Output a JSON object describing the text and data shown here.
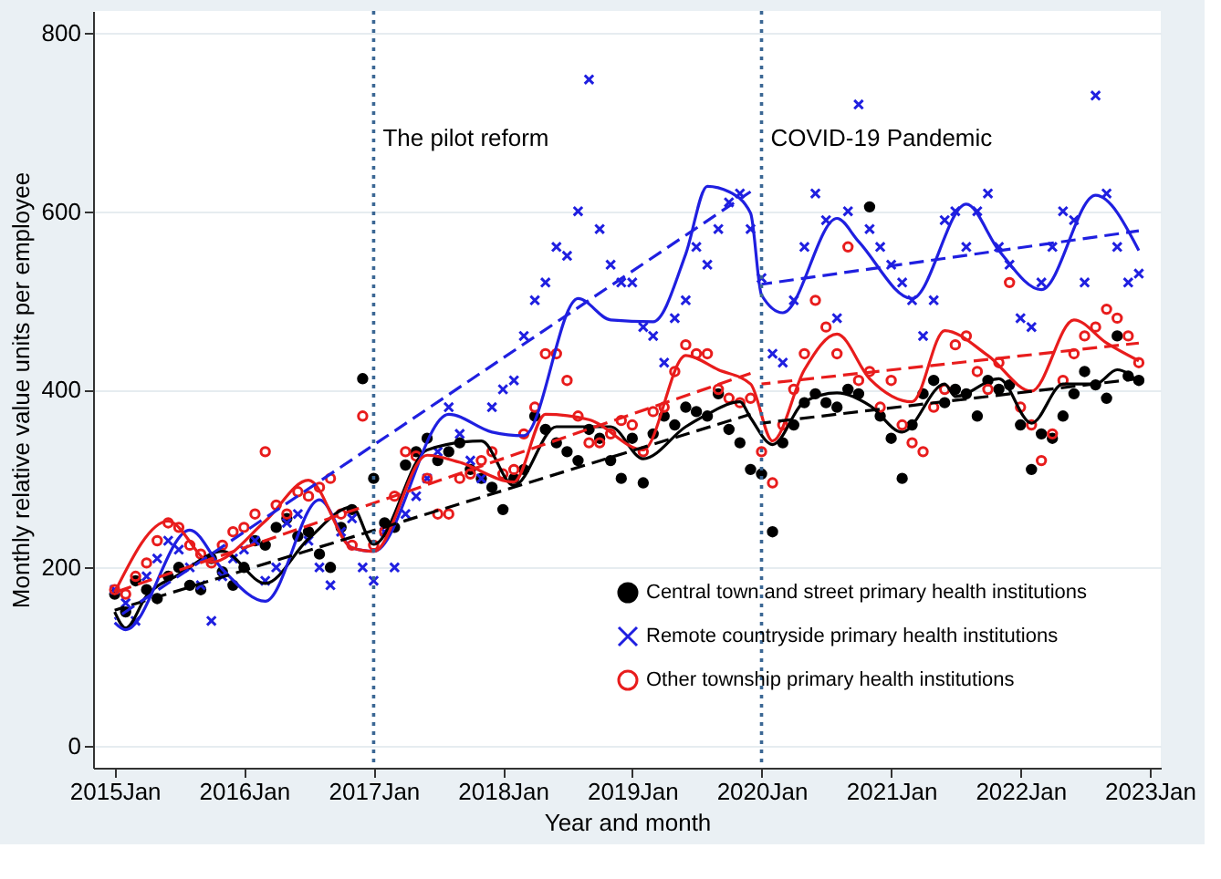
{
  "chart_data": {
    "type": "scatter",
    "xlabel": "Year and month",
    "ylabel": "Monthly relative value units per employee",
    "x": [
      "2015-01",
      "2015-02",
      "2015-03",
      "2015-04",
      "2015-05",
      "2015-06",
      "2015-07",
      "2015-08",
      "2015-09",
      "2015-10",
      "2015-11",
      "2015-12",
      "2016-01",
      "2016-02",
      "2016-03",
      "2016-04",
      "2016-05",
      "2016-06",
      "2016-07",
      "2016-08",
      "2016-09",
      "2016-10",
      "2016-11",
      "2016-12",
      "2017-01",
      "2017-02",
      "2017-03",
      "2017-04",
      "2017-05",
      "2017-06",
      "2017-07",
      "2017-08",
      "2017-09",
      "2017-10",
      "2017-11",
      "2017-12",
      "2018-01",
      "2018-02",
      "2018-03",
      "2018-04",
      "2018-05",
      "2018-06",
      "2018-07",
      "2018-08",
      "2018-09",
      "2018-10",
      "2018-11",
      "2018-12",
      "2019-01",
      "2019-02",
      "2019-03",
      "2019-04",
      "2019-05",
      "2019-06",
      "2019-07",
      "2019-08",
      "2019-09",
      "2019-10",
      "2019-11",
      "2019-12",
      "2020-01",
      "2020-02",
      "2020-03",
      "2020-04",
      "2020-05",
      "2020-06",
      "2020-07",
      "2020-08",
      "2020-09",
      "2020-10",
      "2020-11",
      "2020-12",
      "2021-01",
      "2021-02",
      "2021-03",
      "2021-04",
      "2021-05",
      "2021-06",
      "2021-07",
      "2021-08",
      "2021-09",
      "2021-10",
      "2021-11",
      "2021-12",
      "2022-01",
      "2022-02",
      "2022-03",
      "2022-04",
      "2022-05",
      "2022-06",
      "2022-07",
      "2022-08",
      "2022-09",
      "2022-10",
      "2022-11",
      "2022-12"
    ],
    "series": [
      {
        "name": "Central town and street primary health institutions",
        "color": "#000000",
        "marker": "circle",
        "values": [
          170,
          150,
          185,
          175,
          165,
          190,
          200,
          180,
          175,
          210,
          195,
          180,
          200,
          230,
          225,
          245,
          255,
          235,
          240,
          215,
          200,
          245,
          265,
          412,
          300,
          250,
          245,
          315,
          330,
          345,
          320,
          330,
          340,
          310,
          300,
          290,
          265,
          300,
          310,
          370,
          355,
          340,
          330,
          320,
          355,
          345,
          320,
          300,
          345,
          295,
          350,
          370,
          360,
          380,
          375,
          370,
          395,
          355,
          340,
          310,
          305,
          240,
          340,
          360,
          385,
          395,
          385,
          380,
          400,
          395,
          605,
          370,
          345,
          300,
          360,
          395,
          410,
          385,
          400,
          395,
          370,
          410,
          400,
          405,
          360,
          310,
          350,
          345,
          370,
          395,
          420,
          405,
          390,
          460,
          415,
          410
        ]
      },
      {
        "name": "Remote countryside primary health institutions",
        "color": "#1f1fe0",
        "marker": "cross",
        "values": [
          175,
          160,
          140,
          190,
          210,
          230,
          220,
          200,
          180,
          140,
          190,
          210,
          220,
          230,
          185,
          200,
          250,
          260,
          230,
          200,
          180,
          240,
          255,
          200,
          185,
          240,
          200,
          260,
          280,
          300,
          330,
          380,
          350,
          320,
          300,
          380,
          400,
          410,
          460,
          500,
          520,
          560,
          550,
          600,
          748,
          580,
          540,
          520,
          520,
          470,
          460,
          430,
          480,
          500,
          560,
          540,
          580,
          610,
          620,
          580,
          525,
          440,
          430,
          500,
          560,
          620,
          590,
          480,
          600,
          720,
          580,
          560,
          540,
          520,
          500,
          460,
          500,
          590,
          600,
          560,
          600,
          620,
          560,
          540,
          480,
          470,
          520,
          560,
          600,
          590,
          520,
          730,
          620,
          560,
          520,
          530
        ]
      },
      {
        "name": "Other township primary health institutions",
        "color": "#e81c1c",
        "marker": "circle",
        "values": [
          175,
          170,
          190,
          205,
          230,
          250,
          245,
          225,
          215,
          205,
          225,
          240,
          245,
          260,
          330,
          270,
          260,
          285,
          280,
          290,
          300,
          260,
          225,
          370,
          225,
          240,
          280,
          330,
          325,
          300,
          260,
          260,
          300,
          305,
          320,
          330,
          305,
          310,
          350,
          380,
          440,
          440,
          410,
          370,
          340,
          340,
          350,
          365,
          360,
          330,
          375,
          380,
          420,
          450,
          440,
          440,
          400,
          390,
          385,
          390,
          330,
          295,
          360,
          400,
          440,
          500,
          470,
          440,
          560,
          410,
          420,
          380,
          410,
          360,
          340,
          330,
          380,
          400,
          450,
          460,
          420,
          400,
          430,
          520,
          380,
          360,
          320,
          350,
          410,
          440,
          460,
          470,
          490,
          480,
          460,
          430
        ]
      },
      {
        "type": "line",
        "color": "#000000",
        "line_style": "solid",
        "x": [
          "2015-01",
          "2015-02",
          "2015-04",
          "2015-07",
          "2015-11",
          "2016-03",
          "2016-07",
          "2016-11",
          "2017-01",
          "2017-06",
          "2017-11",
          "2018-02",
          "2018-06",
          "2018-11",
          "2019-02",
          "2019-06",
          "2019-08",
          "2019-11",
          "2019-12",
          "2020-02",
          "2020-05",
          "2020-08",
          "2020-11",
          "2021-02",
          "2021-06",
          "2021-07",
          "2021-11",
          "2022-02",
          "2022-05",
          "2022-08",
          "2022-10",
          "2022-12"
        ],
        "values": [
          150,
          132,
          168,
          192,
          218,
          182,
          232,
          268,
          226,
          332,
          342,
          292,
          358,
          358,
          322,
          358,
          372,
          386,
          368,
          338,
          386,
          396,
          382,
          352,
          406,
          392,
          412,
          362,
          406,
          406,
          422,
          408
        ]
      },
      {
        "type": "line",
        "color": "#1f1fe0",
        "line_style": "solid",
        "x": [
          "2015-01",
          "2015-02",
          "2015-08",
          "2015-11",
          "2016-03",
          "2016-08",
          "2016-11",
          "2017-01",
          "2017-08",
          "2017-12",
          "2018-03",
          "2018-08",
          "2018-11",
          "2019-03",
          "2019-06",
          "2019-08",
          "2019-10",
          "2019-12",
          "2020-01",
          "2020-03",
          "2020-08",
          "2020-10",
          "2021-03",
          "2021-08",
          "2021-11",
          "2022-03",
          "2022-08",
          "2022-12"
        ],
        "values": [
          138,
          130,
          242,
          198,
          162,
          276,
          222,
          218,
          372,
          352,
          348,
          502,
          478,
          476,
          552,
          628,
          622,
          598,
          506,
          486,
          592,
          566,
          502,
          608,
          556,
          512,
          618,
          556
        ]
      },
      {
        "type": "line",
        "color": "#e81c1c",
        "line_style": "solid",
        "x": [
          "2015-01",
          "2015-06",
          "2015-10",
          "2016-03",
          "2016-07",
          "2016-11",
          "2017-01",
          "2017-06",
          "2017-09",
          "2018-02",
          "2018-05",
          "2018-09",
          "2019-02",
          "2019-06",
          "2019-09",
          "2019-12",
          "2020-02",
          "2020-05",
          "2020-08",
          "2020-11",
          "2021-03",
          "2021-06",
          "2021-10",
          "2022-02",
          "2022-06",
          "2022-09",
          "2022-12"
        ],
        "values": [
          172,
          252,
          206,
          252,
          298,
          222,
          218,
          326,
          318,
          296,
          372,
          366,
          332,
          438,
          422,
          406,
          342,
          422,
          462,
          412,
          386,
          466,
          438,
          398,
          478,
          452,
          432
        ]
      },
      {
        "type": "line",
        "color": "#000000",
        "line_style": "dashed",
        "x": [
          "2015-01",
          "2019-12"
        ],
        "values": [
          152,
          372
        ]
      },
      {
        "type": "line",
        "color": "#000000",
        "line_style": "dashed",
        "x": [
          "2020-01",
          "2022-12"
        ],
        "values": [
          362,
          412
        ]
      },
      {
        "type": "line",
        "color": "#1f1fe0",
        "line_style": "dashed",
        "x": [
          "2015-01",
          "2019-12"
        ],
        "values": [
          142,
          622
        ]
      },
      {
        "type": "line",
        "color": "#1f1fe0",
        "line_style": "dashed",
        "x": [
          "2020-01",
          "2022-12"
        ],
        "values": [
          518,
          578
        ]
      },
      {
        "type": "line",
        "color": "#e81c1c",
        "line_style": "dashed",
        "x": [
          "2015-01",
          "2019-12"
        ],
        "values": [
          172,
          418
        ]
      },
      {
        "type": "line",
        "color": "#e81c1c",
        "line_style": "dashed",
        "x": [
          "2020-01",
          "2022-12"
        ],
        "values": [
          406,
          452
        ]
      }
    ],
    "xlim": [
      "2014-11",
      "2023-02"
    ],
    "xticks": [
      {
        "value": "2015-01",
        "label": "2015Jan"
      },
      {
        "value": "2016-01",
        "label": "2016Jan"
      },
      {
        "value": "2017-01",
        "label": "2017Jan"
      },
      {
        "value": "2018-01",
        "label": "2018Jan"
      },
      {
        "value": "2019-01",
        "label": "2019Jan"
      },
      {
        "value": "2020-01",
        "label": "2020Jan"
      },
      {
        "value": "2021-01",
        "label": "2021Jan"
      },
      {
        "value": "2022-01",
        "label": "2022Jan"
      },
      {
        "value": "2023-01",
        "label": "2023Jan"
      }
    ],
    "ylim": [
      -25,
      825
    ],
    "yticks": [
      0,
      200,
      400,
      600,
      800
    ],
    "grid": "y",
    "legend": "bottom right",
    "ref_lines": [
      {
        "axis": "x",
        "value": "2017-01",
        "label": "The pilot reform",
        "color": "#3b6794",
        "line_style": "dotted"
      },
      {
        "axis": "x",
        "value": "2020-01",
        "label": "COVID-19 Pandemic",
        "color": "#3b6794",
        "line_style": "dotted"
      }
    ]
  }
}
